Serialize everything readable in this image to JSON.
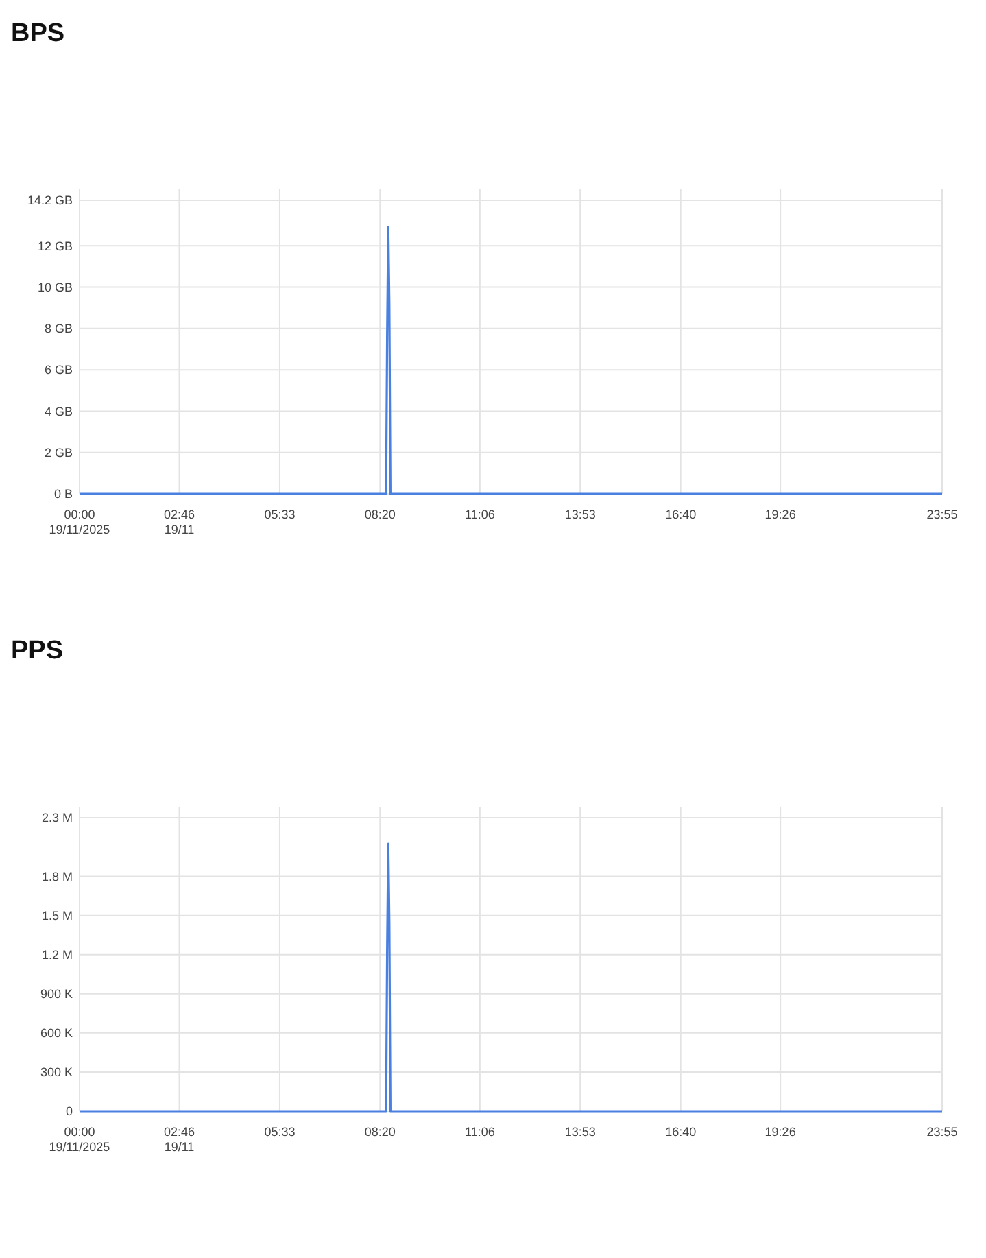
{
  "chart_data": [
    {
      "type": "line",
      "title": "BPS",
      "x": [
        0,
        8.5,
        8.53,
        8.56,
        8.59,
        8.62,
        23.917
      ],
      "series": [
        {
          "color": "#4a80e0",
          "values": [
            0,
            0,
            7.8,
            12.9,
            9.2,
            0,
            0
          ]
        }
      ],
      "xlim": [
        0,
        23.917
      ],
      "xticks": [
        {
          "value": 0,
          "label": "00:00\n19/11/2025"
        },
        {
          "value": 2.767,
          "label": "02:46\n19/11"
        },
        {
          "value": 5.55,
          "label": "05:33"
        },
        {
          "value": 8.333,
          "label": "08:20"
        },
        {
          "value": 11.1,
          "label": "11:06"
        },
        {
          "value": 13.883,
          "label": "13:53"
        },
        {
          "value": 16.667,
          "label": "16:40"
        },
        {
          "value": 19.433,
          "label": "19:26"
        },
        {
          "value": 23.917,
          "label": "23:55"
        }
      ],
      "ylim": [
        0,
        14.2
      ],
      "yticks": [
        {
          "value": 0,
          "label": "0 B"
        },
        {
          "value": 2,
          "label": "2 GB"
        },
        {
          "value": 4,
          "label": "4 GB"
        },
        {
          "value": 6,
          "label": "6 GB"
        },
        {
          "value": 8,
          "label": "8 GB"
        },
        {
          "value": 10,
          "label": "10 GB"
        },
        {
          "value": 12,
          "label": "12 GB"
        },
        {
          "value": 14.2,
          "label": "14.2 GB"
        }
      ],
      "grid": true
    },
    {
      "type": "line",
      "title": "PPS",
      "x": [
        0,
        8.5,
        8.53,
        8.56,
        8.59,
        8.62,
        23.917
      ],
      "series": [
        {
          "color": "#4a80e0",
          "values": [
            0,
            0,
            1250000,
            2050000,
            1450000,
            0,
            0
          ]
        }
      ],
      "xlim": [
        0,
        23.917
      ],
      "xticks": [
        {
          "value": 0,
          "label": "00:00\n19/11/2025"
        },
        {
          "value": 2.767,
          "label": "02:46\n19/11"
        },
        {
          "value": 5.55,
          "label": "05:33"
        },
        {
          "value": 8.333,
          "label": "08:20"
        },
        {
          "value": 11.1,
          "label": "11:06"
        },
        {
          "value": 13.883,
          "label": "13:53"
        },
        {
          "value": 16.667,
          "label": "16:40"
        },
        {
          "value": 19.433,
          "label": "19:26"
        },
        {
          "value": 23.917,
          "label": "23:55"
        }
      ],
      "ylim": [
        0,
        2250000
      ],
      "yticks": [
        {
          "value": 0,
          "label": "0"
        },
        {
          "value": 300000,
          "label": "300 K"
        },
        {
          "value": 600000,
          "label": "600 K"
        },
        {
          "value": 900000,
          "label": "900 K"
        },
        {
          "value": 1200000,
          "label": "1.2 M"
        },
        {
          "value": 1500000,
          "label": "1.5 M"
        },
        {
          "value": 1800000,
          "label": "1.8 M"
        },
        {
          "value": 2250000,
          "label": "2.3 M"
        }
      ],
      "grid": true
    }
  ]
}
